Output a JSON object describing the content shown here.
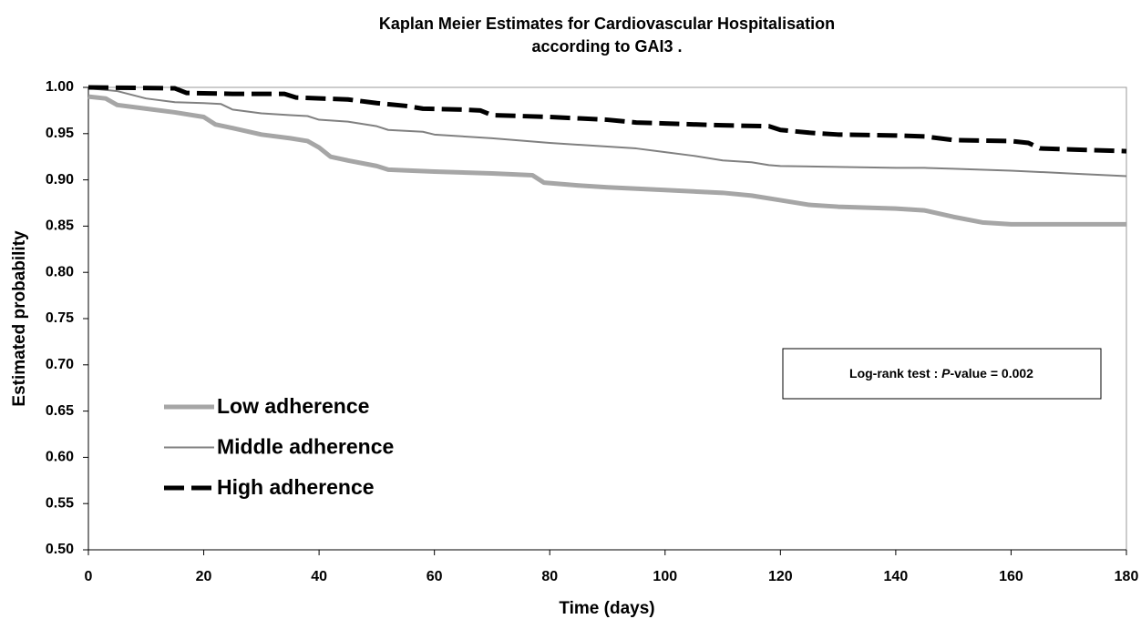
{
  "chart_data": {
    "type": "line",
    "title": [
      "Kaplan Meier Estimates for Cardiovascular Hospitalisation",
      "according to GAI3 ."
    ],
    "xlabel": "Time (days)",
    "ylabel": "Estimated probability",
    "annotation": [
      "Log-rank test : ",
      "P",
      "-value = 0.002"
    ],
    "xlim": [
      0,
      180
    ],
    "xticks": [
      0,
      20,
      40,
      60,
      80,
      100,
      120,
      140,
      160,
      180
    ],
    "ylim": [
      0.5,
      1
    ],
    "yticks": [
      {
        "value": 0.5,
        "label": "0.50"
      },
      0.55,
      {
        "value": 0.6,
        "label": "0.60"
      },
      0.65,
      {
        "value": 0.7,
        "label": "0.70"
      },
      0.75,
      {
        "value": 0.8,
        "label": "0.80"
      },
      0.85,
      {
        "value": 0.9,
        "label": "0.90"
      },
      0.95,
      {
        "value": 1,
        "label": "1.00"
      }
    ],
    "legend": "center left",
    "series": [
      {
        "name": "Low adherence",
        "color": "#a6a6a6",
        "linewidth": 5,
        "style": "solid",
        "x": [
          0,
          3,
          5,
          10,
          15,
          20,
          22,
          25,
          30,
          35,
          38,
          40,
          42,
          45,
          50,
          52,
          60,
          70,
          77,
          79,
          85,
          90,
          100,
          110,
          115,
          120,
          125,
          130,
          140,
          145,
          150,
          155,
          160,
          170,
          180
        ],
        "values": [
          0.99,
          0.988,
          0.981,
          0.977,
          0.973,
          0.968,
          0.96,
          0.956,
          0.949,
          0.945,
          0.942,
          0.935,
          0.925,
          0.921,
          0.915,
          0.911,
          0.909,
          0.907,
          0.905,
          0.897,
          0.894,
          0.892,
          0.889,
          0.886,
          0.883,
          0.878,
          0.873,
          0.871,
          0.869,
          0.867,
          0.86,
          0.854,
          0.852,
          0.852,
          0.852
        ]
      },
      {
        "name": "Middle adherence",
        "color": "#808080",
        "linewidth": 2,
        "style": "solid",
        "x": [
          0,
          5,
          10,
          15,
          20,
          23,
          25,
          30,
          35,
          38,
          40,
          45,
          50,
          52,
          58,
          60,
          70,
          80,
          90,
          95,
          100,
          105,
          110,
          115,
          118,
          120,
          130,
          140,
          145,
          150,
          160,
          170,
          180
        ],
        "values": [
          0.999,
          0.996,
          0.988,
          0.984,
          0.983,
          0.982,
          0.976,
          0.972,
          0.97,
          0.969,
          0.965,
          0.963,
          0.958,
          0.954,
          0.952,
          0.949,
          0.945,
          0.94,
          0.936,
          0.934,
          0.93,
          0.926,
          0.921,
          0.919,
          0.916,
          0.915,
          0.914,
          0.913,
          0.913,
          0.912,
          0.91,
          0.907,
          0.904
        ]
      },
      {
        "name": "High adherence",
        "color": "#000000",
        "linewidth": 5,
        "style": "dashed",
        "x": [
          0,
          15,
          17,
          25,
          34,
          36,
          45,
          50,
          55,
          58,
          65,
          68,
          70,
          80,
          90,
          95,
          100,
          110,
          118,
          120,
          125,
          130,
          140,
          145,
          150,
          160,
          163,
          165,
          170,
          180
        ],
        "values": [
          1,
          0.999,
          0.994,
          0.993,
          0.993,
          0.989,
          0.987,
          0.983,
          0.98,
          0.977,
          0.976,
          0.975,
          0.97,
          0.968,
          0.965,
          0.962,
          0.961,
          0.959,
          0.958,
          0.954,
          0.951,
          0.949,
          0.948,
          0.947,
          0.943,
          0.942,
          0.94,
          0.934,
          0.933,
          0.931
        ]
      }
    ]
  }
}
